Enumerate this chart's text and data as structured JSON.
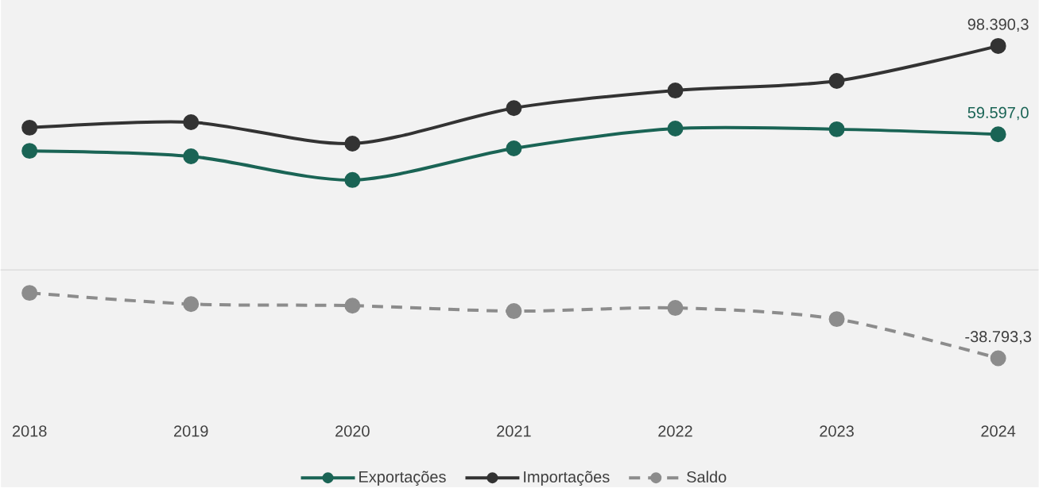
{
  "chart_data": {
    "type": "line",
    "categories": [
      "2018",
      "2019",
      "2020",
      "2021",
      "2022",
      "2023",
      "2024"
    ],
    "series": [
      {
        "name": "Exportações",
        "color": "#1a6455",
        "values": [
          52300,
          49900,
          39500,
          53400,
          62100,
          61800,
          59597.0
        ],
        "value_labels": [
          null,
          null,
          null,
          null,
          null,
          null,
          "59.597,0"
        ]
      },
      {
        "name": "Importações",
        "color": "#333333",
        "values": [
          62500,
          64900,
          55500,
          71100,
          78800,
          83000,
          98390.3
        ],
        "value_labels": [
          null,
          null,
          null,
          null,
          null,
          null,
          "98.390,3"
        ]
      },
      {
        "name": "Saldo",
        "color": "#8c8c8c",
        "line_style": "dashed",
        "values": [
          -10100,
          -15000,
          -15700,
          -18100,
          -16700,
          -21600,
          -38793.3
        ],
        "value_labels": [
          null,
          null,
          null,
          null,
          null,
          null,
          "-38.793,3"
        ]
      }
    ],
    "marker": "circle",
    "legend": "bottom"
  }
}
